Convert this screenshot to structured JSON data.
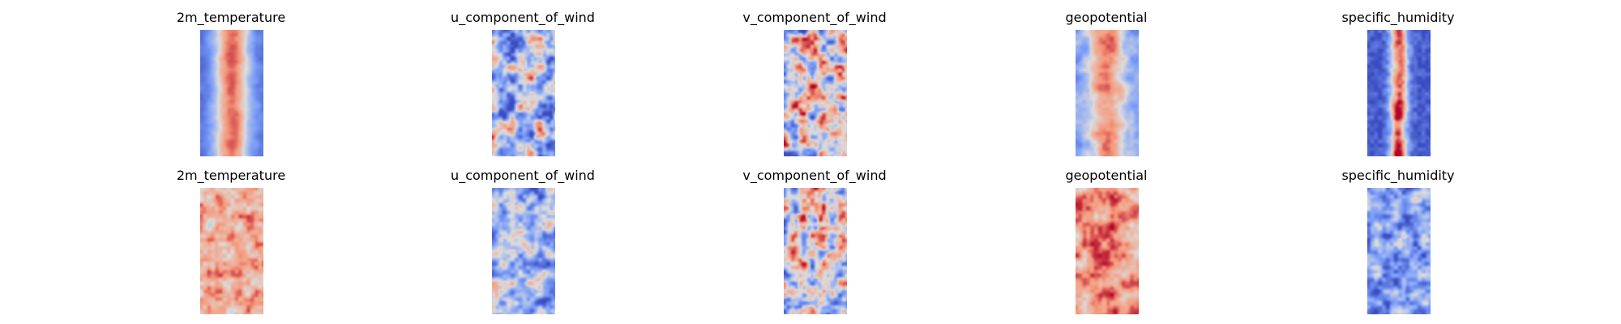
{
  "figure": {
    "rows": [
      {
        "panels": [
          {
            "title": "2m_temperature",
            "kind": "band",
            "seed": 11
          },
          {
            "title": "u_component_of_wind",
            "kind": "wind",
            "seed": 21
          },
          {
            "title": "v_component_of_wind",
            "kind": "vwind",
            "seed": 31
          },
          {
            "title": "geopotential",
            "kind": "geo",
            "seed": 41
          },
          {
            "title": "specific_humidity",
            "kind": "humid",
            "seed": 51
          }
        ]
      },
      {
        "panels": [
          {
            "title": "2m_temperature",
            "kind": "noisywarm",
            "seed": 12
          },
          {
            "title": "u_component_of_wind",
            "kind": "coolnoise",
            "seed": 22
          },
          {
            "title": "v_component_of_wind",
            "kind": "vwind",
            "seed": 32
          },
          {
            "title": "geopotential",
            "kind": "warmnoise",
            "seed": 42
          },
          {
            "title": "specific_humidity",
            "kind": "humidnoise",
            "seed": 52
          }
        ]
      }
    ],
    "colormap": "coolwarm"
  },
  "chart_data": {
    "type": "heatmap",
    "colormap": "coolwarm",
    "panels": [
      {
        "row": 1,
        "col": 1,
        "title": "2m_temperature"
      },
      {
        "row": 1,
        "col": 2,
        "title": "u_component_of_wind"
      },
      {
        "row": 1,
        "col": 3,
        "title": "v_component_of_wind"
      },
      {
        "row": 1,
        "col": 4,
        "title": "geopotential"
      },
      {
        "row": 1,
        "col": 5,
        "title": "specific_humidity"
      },
      {
        "row": 2,
        "col": 1,
        "title": "2m_temperature"
      },
      {
        "row": 2,
        "col": 2,
        "title": "u_component_of_wind"
      },
      {
        "row": 2,
        "col": 3,
        "title": "v_component_of_wind"
      },
      {
        "row": 2,
        "col": 4,
        "title": "geopotential"
      },
      {
        "row": 2,
        "col": 5,
        "title": "specific_humidity"
      }
    ],
    "axes_visible": false,
    "grid": false
  }
}
